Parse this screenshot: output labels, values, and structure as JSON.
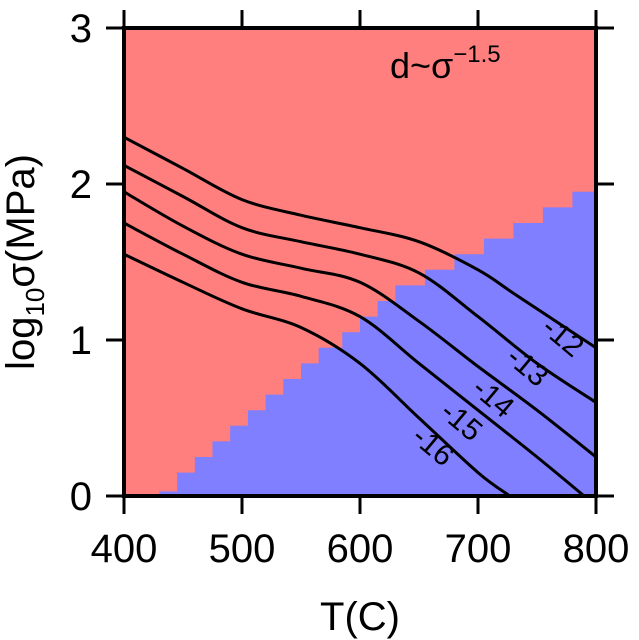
{
  "chart_data": {
    "type": "contour",
    "xlabel": "T(C)",
    "ylabel": {
      "prefix": "log",
      "subscript": "10",
      "suffix": "σ(MPa)"
    },
    "xlim": [
      400,
      800
    ],
    "ylim": [
      0,
      3
    ],
    "x_ticks": [
      400,
      500,
      600,
      700,
      800
    ],
    "x_tick_labels": [
      "400",
      "500",
      "600",
      "700",
      "800"
    ],
    "y_ticks": [
      0,
      1,
      2,
      3
    ],
    "y_tick_labels": [
      "0",
      "1",
      "2",
      "3"
    ],
    "annotation": {
      "base": "d~σ",
      "exponent": "−1.5"
    },
    "regions": {
      "upper_color": "#ff7f7f",
      "lower_color": "#7f7fff",
      "boundary_steps": [
        [
          400,
          0.0
        ],
        [
          430,
          0.0
        ],
        [
          430,
          0.03
        ],
        [
          445,
          0.03
        ],
        [
          445,
          0.15
        ],
        [
          460,
          0.15
        ],
        [
          460,
          0.25
        ],
        [
          475,
          0.25
        ],
        [
          475,
          0.35
        ],
        [
          490,
          0.35
        ],
        [
          490,
          0.45
        ],
        [
          505,
          0.45
        ],
        [
          505,
          0.55
        ],
        [
          520,
          0.55
        ],
        [
          520,
          0.65
        ],
        [
          535,
          0.65
        ],
        [
          535,
          0.75
        ],
        [
          550,
          0.75
        ],
        [
          550,
          0.85
        ],
        [
          565,
          0.85
        ],
        [
          565,
          0.95
        ],
        [
          585,
          0.95
        ],
        [
          585,
          1.05
        ],
        [
          600,
          1.05
        ],
        [
          600,
          1.15
        ],
        [
          615,
          1.15
        ],
        [
          615,
          1.25
        ],
        [
          630,
          1.25
        ],
        [
          630,
          1.35
        ],
        [
          655,
          1.35
        ],
        [
          655,
          1.45
        ],
        [
          680,
          1.45
        ],
        [
          680,
          1.55
        ],
        [
          705,
          1.55
        ],
        [
          705,
          1.65
        ],
        [
          730,
          1.65
        ],
        [
          730,
          1.75
        ],
        [
          755,
          1.75
        ],
        [
          755,
          1.85
        ],
        [
          780,
          1.85
        ],
        [
          780,
          1.95
        ],
        [
          800,
          1.95
        ]
      ]
    },
    "series": [
      {
        "label": "-12",
        "points": [
          [
            400,
            2.3
          ],
          [
            450,
            2.1
          ],
          [
            500,
            1.9
          ],
          [
            550,
            1.8
          ],
          [
            600,
            1.72
          ],
          [
            650,
            1.63
          ],
          [
            700,
            1.45
          ],
          [
            730,
            1.3
          ],
          [
            780,
            1.05
          ],
          [
            800,
            0.95
          ]
        ]
      },
      {
        "label": "-13",
        "points": [
          [
            400,
            2.12
          ],
          [
            450,
            1.92
          ],
          [
            500,
            1.72
          ],
          [
            550,
            1.63
          ],
          [
            600,
            1.55
          ],
          [
            650,
            1.43
          ],
          [
            700,
            1.15
          ],
          [
            750,
            0.85
          ],
          [
            800,
            0.6
          ]
        ]
      },
      {
        "label": "-14",
        "points": [
          [
            400,
            1.95
          ],
          [
            450,
            1.73
          ],
          [
            500,
            1.55
          ],
          [
            550,
            1.46
          ],
          [
            600,
            1.37
          ],
          [
            650,
            1.12
          ],
          [
            700,
            0.83
          ],
          [
            750,
            0.55
          ],
          [
            800,
            0.25
          ]
        ]
      },
      {
        "label": "-15",
        "points": [
          [
            400,
            1.75
          ],
          [
            450,
            1.55
          ],
          [
            500,
            1.37
          ],
          [
            550,
            1.28
          ],
          [
            600,
            1.15
          ],
          [
            650,
            0.85
          ],
          [
            700,
            0.55
          ],
          [
            750,
            0.25
          ],
          [
            790,
            0.0
          ]
        ]
      },
      {
        "label": "-16",
        "points": [
          [
            400,
            1.55
          ],
          [
            450,
            1.37
          ],
          [
            500,
            1.2
          ],
          [
            550,
            1.08
          ],
          [
            600,
            0.85
          ],
          [
            650,
            0.5
          ],
          [
            700,
            0.15
          ],
          [
            727,
            0.0
          ]
        ]
      }
    ],
    "contour_label_positions": [
      {
        "label": "-12",
        "x": 772,
        "y": 1.02
      },
      {
        "label": "-13",
        "x": 742,
        "y": 0.83
      },
      {
        "label": "-14",
        "x": 713,
        "y": 0.63
      },
      {
        "label": "-15",
        "x": 686,
        "y": 0.48
      },
      {
        "label": "-16",
        "x": 662,
        "y": 0.32
      }
    ]
  }
}
